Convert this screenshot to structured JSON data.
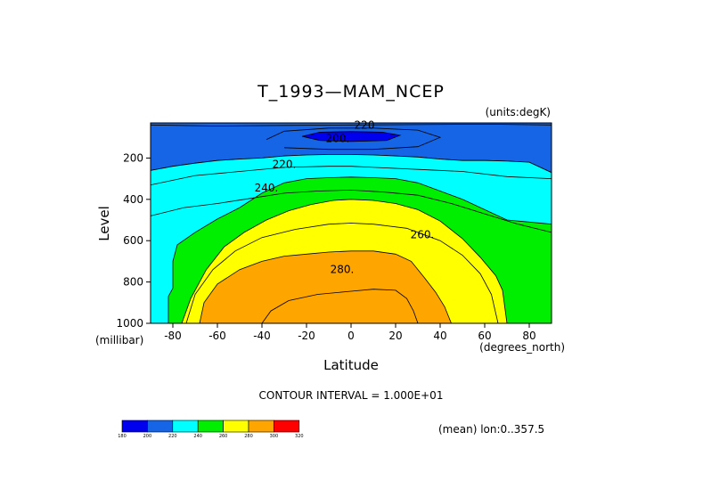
{
  "chart_data": {
    "type": "heatmap",
    "subtype": "filled-contour",
    "title": "T_1993—MAM_NCEP",
    "units_label": "(units:degK)",
    "xlabel": "Latitude",
    "x_units": "(degrees_north)",
    "ylabel": "Level",
    "y_units": "(millibar)",
    "xlim": [
      -90,
      90
    ],
    "ylim": [
      1000,
      30
    ],
    "y_inverted": true,
    "x_ticks": [
      -80,
      -60,
      -40,
      -20,
      0,
      20,
      40,
      60,
      80
    ],
    "y_ticks": [
      200,
      400,
      600,
      800,
      1000
    ],
    "contour_interval_text": "CONTOUR INTERVAL = 1.000E+01",
    "contour_labels": [
      {
        "text": "220",
        "x": 6,
        "y": 40
      },
      {
        "text": "200.",
        "x": -6,
        "y": 105
      },
      {
        "text": "220.",
        "x": -30,
        "y": 230
      },
      {
        "text": "240.",
        "x": -38,
        "y": 345
      },
      {
        "text": "260.",
        "x": 32,
        "y": 570
      },
      {
        "text": "280.",
        "x": -4,
        "y": 740
      }
    ],
    "colorbar": {
      "levels": [
        180,
        200,
        220,
        240,
        260,
        280,
        300,
        320
      ],
      "colors": [
        "#0000ee",
        "#1565e6",
        "#00ffff",
        "#00ee00",
        "#ffff00",
        "#ffa500",
        "#ff0000"
      ]
    },
    "mean_note": "(mean) lon:0..357.5",
    "contours": [
      {
        "level": 200,
        "fill": "#1565e6",
        "points": [
          [
            -90,
            30
          ],
          [
            90,
            30
          ],
          [
            90,
            270
          ],
          [
            80,
            220
          ],
          [
            70,
            215
          ],
          [
            60,
            212
          ],
          [
            50,
            212
          ],
          [
            40,
            205
          ],
          [
            30,
            195
          ],
          [
            20,
            190
          ],
          [
            10,
            185
          ],
          [
            0,
            183
          ],
          [
            -10,
            183
          ],
          [
            -20,
            185
          ],
          [
            -30,
            190
          ],
          [
            -40,
            200
          ],
          [
            -50,
            205
          ],
          [
            -60,
            212
          ],
          [
            -70,
            225
          ],
          [
            -80,
            240
          ],
          [
            -90,
            260
          ]
        ]
      },
      {
        "level": 220,
        "fill": "#00ffff",
        "points": [
          [
            -90,
            260
          ],
          [
            -80,
            240
          ],
          [
            -70,
            225
          ],
          [
            -60,
            212
          ],
          [
            -50,
            205
          ],
          [
            -40,
            200
          ],
          [
            -30,
            190
          ],
          [
            -20,
            185
          ],
          [
            -10,
            183
          ],
          [
            0,
            183
          ],
          [
            10,
            185
          ],
          [
            20,
            190
          ],
          [
            30,
            195
          ],
          [
            40,
            205
          ],
          [
            50,
            212
          ],
          [
            60,
            212
          ],
          [
            70,
            215
          ],
          [
            80,
            220
          ],
          [
            90,
            270
          ],
          [
            90,
            1000
          ],
          [
            -90,
            1000
          ]
        ]
      },
      {
        "level": 240,
        "fill": "#00ee00",
        "points": [
          [
            -82,
            1000
          ],
          [
            -82,
            870
          ],
          [
            -80,
            830
          ],
          [
            -80,
            700
          ],
          [
            -78,
            620
          ],
          [
            -70,
            560
          ],
          [
            -60,
            495
          ],
          [
            -50,
            440
          ],
          [
            -40,
            370
          ],
          [
            -30,
            320
          ],
          [
            -20,
            300
          ],
          [
            -10,
            295
          ],
          [
            0,
            292
          ],
          [
            10,
            295
          ],
          [
            20,
            300
          ],
          [
            30,
            320
          ],
          [
            40,
            360
          ],
          [
            50,
            400
          ],
          [
            60,
            450
          ],
          [
            70,
            500
          ],
          [
            80,
            510
          ],
          [
            90,
            520
          ],
          [
            90,
            1000
          ]
        ]
      },
      {
        "level": 260,
        "fill": "#ffff00",
        "points": [
          [
            -76,
            1000
          ],
          [
            -72,
            880
          ],
          [
            -65,
            740
          ],
          [
            -57,
            630
          ],
          [
            -48,
            560
          ],
          [
            -38,
            500
          ],
          [
            -28,
            455
          ],
          [
            -18,
            425
          ],
          [
            -8,
            405
          ],
          [
            0,
            400
          ],
          [
            10,
            405
          ],
          [
            20,
            420
          ],
          [
            30,
            450
          ],
          [
            40,
            505
          ],
          [
            50,
            590
          ],
          [
            58,
            680
          ],
          [
            65,
            770
          ],
          [
            68,
            840
          ],
          [
            70,
            1000
          ]
        ]
      },
      {
        "level": 280,
        "fill": "#ffa500",
        "points": [
          [
            -68,
            1000
          ],
          [
            -66,
            900
          ],
          [
            -60,
            810
          ],
          [
            -50,
            740
          ],
          [
            -40,
            700
          ],
          [
            -30,
            675
          ],
          [
            -20,
            665
          ],
          [
            -10,
            655
          ],
          [
            0,
            650
          ],
          [
            10,
            650
          ],
          [
            20,
            665
          ],
          [
            27,
            700
          ],
          [
            33,
            780
          ],
          [
            38,
            850
          ],
          [
            42,
            920
          ],
          [
            45,
            1000
          ]
        ]
      },
      {
        "level": 200,
        "fill": "#0000ee",
        "points": [
          [
            -22,
            95
          ],
          [
            -14,
            75
          ],
          [
            0,
            72
          ],
          [
            14,
            75
          ],
          [
            22,
            90
          ],
          [
            16,
            115
          ],
          [
            0,
            120
          ],
          [
            -14,
            115
          ]
        ]
      }
    ],
    "contour_lines": [
      {
        "level": 220,
        "points": [
          [
            -90,
            40
          ],
          [
            -60,
            45
          ],
          [
            -30,
            42
          ],
          [
            0,
            40
          ],
          [
            30,
            38
          ],
          [
            60,
            36
          ],
          [
            90,
            40
          ]
        ]
      },
      {
        "level": 210,
        "points": [
          [
            -38,
            110
          ],
          [
            -30,
            70
          ],
          [
            -10,
            55
          ],
          [
            10,
            55
          ],
          [
            30,
            65
          ],
          [
            40,
            100
          ],
          [
            30,
            145
          ],
          [
            10,
            158
          ],
          [
            -10,
            158
          ],
          [
            -30,
            150
          ]
        ]
      },
      {
        "level": 230,
        "points": [
          [
            -90,
            330
          ],
          [
            -70,
            285
          ],
          [
            -50,
            265
          ],
          [
            -30,
            245
          ],
          [
            -10,
            240
          ],
          [
            0,
            240
          ],
          [
            10,
            245
          ],
          [
            30,
            255
          ],
          [
            50,
            265
          ],
          [
            70,
            290
          ],
          [
            90,
            300
          ]
        ]
      },
      {
        "level": 250,
        "points": [
          [
            -90,
            480
          ],
          [
            -75,
            440
          ],
          [
            -60,
            420
          ],
          [
            -45,
            395
          ],
          [
            -30,
            370
          ],
          [
            -15,
            360
          ],
          [
            0,
            355
          ],
          [
            15,
            365
          ],
          [
            30,
            380
          ],
          [
            45,
            420
          ],
          [
            60,
            470
          ],
          [
            75,
            520
          ],
          [
            90,
            560
          ]
        ]
      },
      {
        "level": 270,
        "points": [
          [
            -74,
            1000
          ],
          [
            -70,
            860
          ],
          [
            -62,
            740
          ],
          [
            -52,
            650
          ],
          [
            -40,
            585
          ],
          [
            -25,
            545
          ],
          [
            -10,
            520
          ],
          [
            0,
            515
          ],
          [
            10,
            520
          ],
          [
            25,
            540
          ],
          [
            40,
            600
          ],
          [
            50,
            670
          ],
          [
            58,
            760
          ],
          [
            63,
            860
          ],
          [
            66,
            1000
          ]
        ]
      },
      {
        "level": 290,
        "points": [
          [
            -40,
            1000
          ],
          [
            -36,
            940
          ],
          [
            -28,
            890
          ],
          [
            -15,
            860
          ],
          [
            0,
            845
          ],
          [
            10,
            835
          ],
          [
            20,
            840
          ],
          [
            25,
            880
          ],
          [
            28,
            940
          ],
          [
            30,
            1000
          ]
        ]
      }
    ]
  }
}
